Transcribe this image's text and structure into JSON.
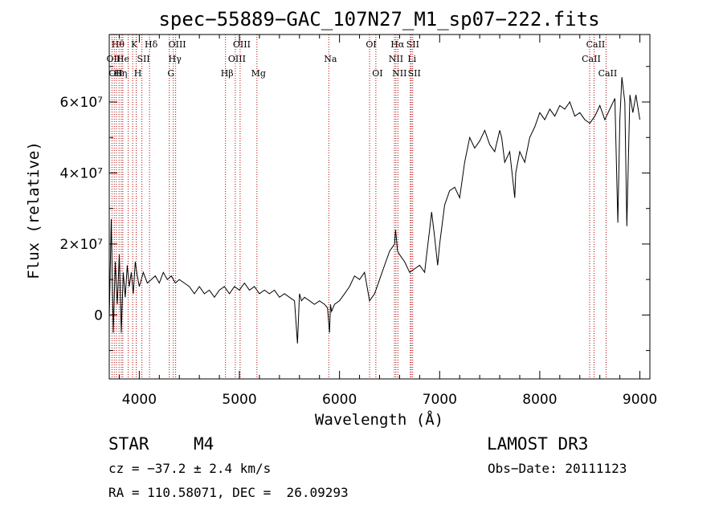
{
  "chart_data": {
    "type": "line",
    "title": "spec−55889−GAC_107N27_M1_sp07−222.fits",
    "xlabel": "Wavelength (Å)",
    "ylabel": "Flux (relative)",
    "xlim": [
      3700,
      9100
    ],
    "ylim": [
      -18000000,
      79000000
    ],
    "x_ticks": [
      4000,
      5000,
      6000,
      7000,
      8000,
      9000
    ],
    "y_ticks": [
      {
        "value": 0,
        "label": "0"
      },
      {
        "value": 20000000,
        "label": "2×10⁷"
      },
      {
        "value": 40000000,
        "label": "4×10⁷"
      },
      {
        "value": 60000000,
        "label": "6×10⁷"
      }
    ],
    "series": [
      {
        "name": "flux",
        "x": [
          3700,
          3720,
          3740,
          3760,
          3780,
          3800,
          3820,
          3840,
          3860,
          3880,
          3900,
          3920,
          3940,
          3960,
          3980,
          4000,
          4040,
          4080,
          4120,
          4160,
          4200,
          4240,
          4280,
          4320,
          4360,
          4400,
          4450,
          4500,
          4550,
          4600,
          4650,
          4700,
          4750,
          4800,
          4850,
          4900,
          4950,
          5000,
          5050,
          5100,
          5150,
          5200,
          5250,
          5300,
          5350,
          5400,
          5450,
          5500,
          5550,
          5580,
          5600,
          5620,
          5650,
          5700,
          5750,
          5800,
          5850,
          5880,
          5900,
          5910,
          5920,
          5950,
          6000,
          6050,
          6100,
          6150,
          6200,
          6250,
          6300,
          6350,
          6400,
          6450,
          6500,
          6550,
          6560,
          6570,
          6580,
          6600,
          6650,
          6700,
          6750,
          6800,
          6850,
          6870,
          6900,
          6920,
          6950,
          6980,
          7000,
          7050,
          7100,
          7150,
          7200,
          7250,
          7300,
          7350,
          7400,
          7450,
          7500,
          7550,
          7600,
          7620,
          7650,
          7700,
          7750,
          7760,
          7800,
          7850,
          7900,
          7950,
          8000,
          8050,
          8100,
          8150,
          8200,
          8250,
          8300,
          8350,
          8400,
          8450,
          8500,
          8550,
          8600,
          8650,
          8700,
          8750,
          8780,
          8800,
          8820,
          8850,
          8870,
          8900,
          8930,
          8960,
          9000
        ],
        "values": [
          -1000000,
          27000000,
          -5000000,
          15000000,
          3000000,
          17000000,
          -5000000,
          12000000,
          5000000,
          14000000,
          8000000,
          12000000,
          6000000,
          15000000,
          11000000,
          8000000,
          12000000,
          9000000,
          10000000,
          11000000,
          9000000,
          12000000,
          10000000,
          11000000,
          9000000,
          10000000,
          9000000,
          8000000,
          6000000,
          8000000,
          6000000,
          7000000,
          5000000,
          7000000,
          8000000,
          6000000,
          8000000,
          7000000,
          9000000,
          7000000,
          8000000,
          6000000,
          7000000,
          6000000,
          7000000,
          5000000,
          6000000,
          5000000,
          4000000,
          -8000000,
          6000000,
          4000000,
          5000000,
          4000000,
          3000000,
          4000000,
          3000000,
          2000000,
          -5000000,
          3000000,
          1000000,
          3000000,
          4000000,
          6000000,
          8000000,
          11000000,
          10000000,
          12000000,
          4000000,
          6000000,
          10000000,
          14000000,
          18000000,
          20000000,
          24000000,
          21000000,
          18000000,
          17000000,
          15000000,
          12000000,
          13000000,
          14000000,
          12000000,
          17000000,
          24000000,
          29000000,
          22000000,
          14000000,
          20000000,
          31000000,
          35000000,
          36000000,
          33000000,
          43000000,
          50000000,
          47000000,
          49000000,
          52000000,
          48000000,
          46000000,
          52000000,
          50000000,
          43000000,
          46000000,
          33000000,
          40000000,
          46000000,
          43000000,
          50000000,
          53000000,
          57000000,
          55000000,
          58000000,
          56000000,
          59000000,
          58000000,
          60000000,
          56000000,
          57000000,
          55000000,
          54000000,
          56000000,
          59000000,
          55000000,
          58000000,
          61000000,
          26000000,
          55000000,
          67000000,
          60000000,
          25000000,
          62000000,
          57000000,
          62000000,
          55000000
        ]
      }
    ],
    "vertical_lines": [
      {
        "x": 3727,
        "label": "OII",
        "row": 1
      },
      {
        "x": 3750,
        "label": "OII",
        "row": 2
      },
      {
        "x": 3771,
        "label": "Hθ",
        "row": 0
      },
      {
        "x": 3798,
        "label": "Hη",
        "row": 2
      },
      {
        "x": 3820,
        "label": "He",
        "row": 1
      },
      {
        "x": 3835,
        "label": "",
        "row": 0
      },
      {
        "x": 3889,
        "label": "",
        "row": 0
      },
      {
        "x": 3934,
        "label": "K",
        "row": 0
      },
      {
        "x": 3969,
        "label": "H",
        "row": 2
      },
      {
        "x": 4026,
        "label": "SII",
        "row": 1
      },
      {
        "x": 4102,
        "label": "Hδ",
        "row": 0
      },
      {
        "x": 4300,
        "label": "G",
        "row": 2
      },
      {
        "x": 4340,
        "label": "Hγ",
        "row": 1
      },
      {
        "x": 4363,
        "label": "OIII",
        "row": 0
      },
      {
        "x": 4861,
        "label": "Hβ",
        "row": 2
      },
      {
        "x": 4959,
        "label": "OIII",
        "row": 1
      },
      {
        "x": 5007,
        "label": "OIII",
        "row": 0
      },
      {
        "x": 5175,
        "label": "Mg",
        "row": 2
      },
      {
        "x": 5893,
        "label": "Na",
        "row": 1
      },
      {
        "x": 6300,
        "label": "OI",
        "row": 0
      },
      {
        "x": 6363,
        "label": "OI",
        "row": 2
      },
      {
        "x": 6548,
        "label": "NII",
        "row": 1
      },
      {
        "x": 6563,
        "label": "Hα",
        "row": 0
      },
      {
        "x": 6583,
        "label": "NII",
        "row": 2
      },
      {
        "x": 6707,
        "label": "Li",
        "row": 1
      },
      {
        "x": 6716,
        "label": "SII",
        "row": 0
      },
      {
        "x": 6731,
        "label": "SII",
        "row": 2
      },
      {
        "x": 8498,
        "label": "CaII",
        "row": 1
      },
      {
        "x": 8542,
        "label": "CaII",
        "row": 0
      },
      {
        "x": 8662,
        "label": "CaII",
        "row": 2
      }
    ]
  },
  "info": {
    "class_label": "STAR",
    "subclass": "M4",
    "survey": "LAMOST DR3",
    "cz": "cz = −37.2 ± 2.4 km/s",
    "obs_date": "Obs−Date: 20111123",
    "radec": "RA = 110.58071, DEC =  26.09293"
  }
}
